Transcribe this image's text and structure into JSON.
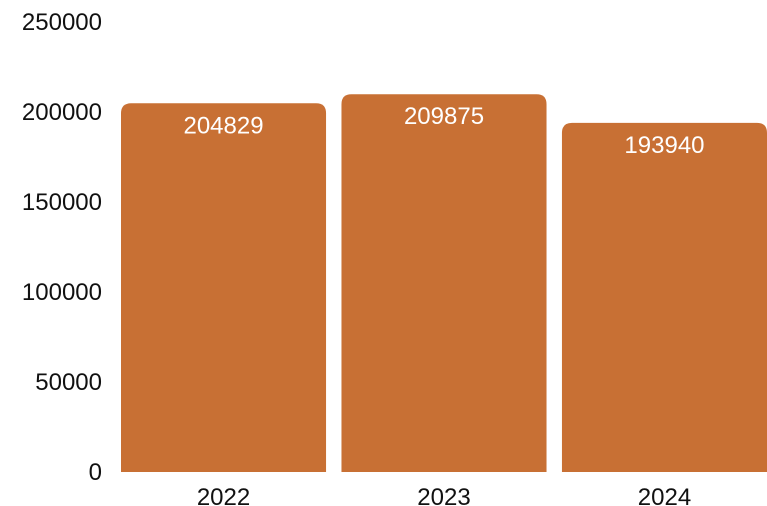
{
  "chart_data": {
    "type": "bar",
    "categories": [
      "2022",
      "2023",
      "2024"
    ],
    "values": [
      204829,
      209875,
      193940
    ],
    "ylim": [
      0,
      250000
    ],
    "yticks": [
      0,
      50000,
      100000,
      150000,
      200000,
      250000
    ],
    "grid": false,
    "legend": "none",
    "bar_color": "#C87034",
    "data_label_color": "#FFFFFF"
  }
}
